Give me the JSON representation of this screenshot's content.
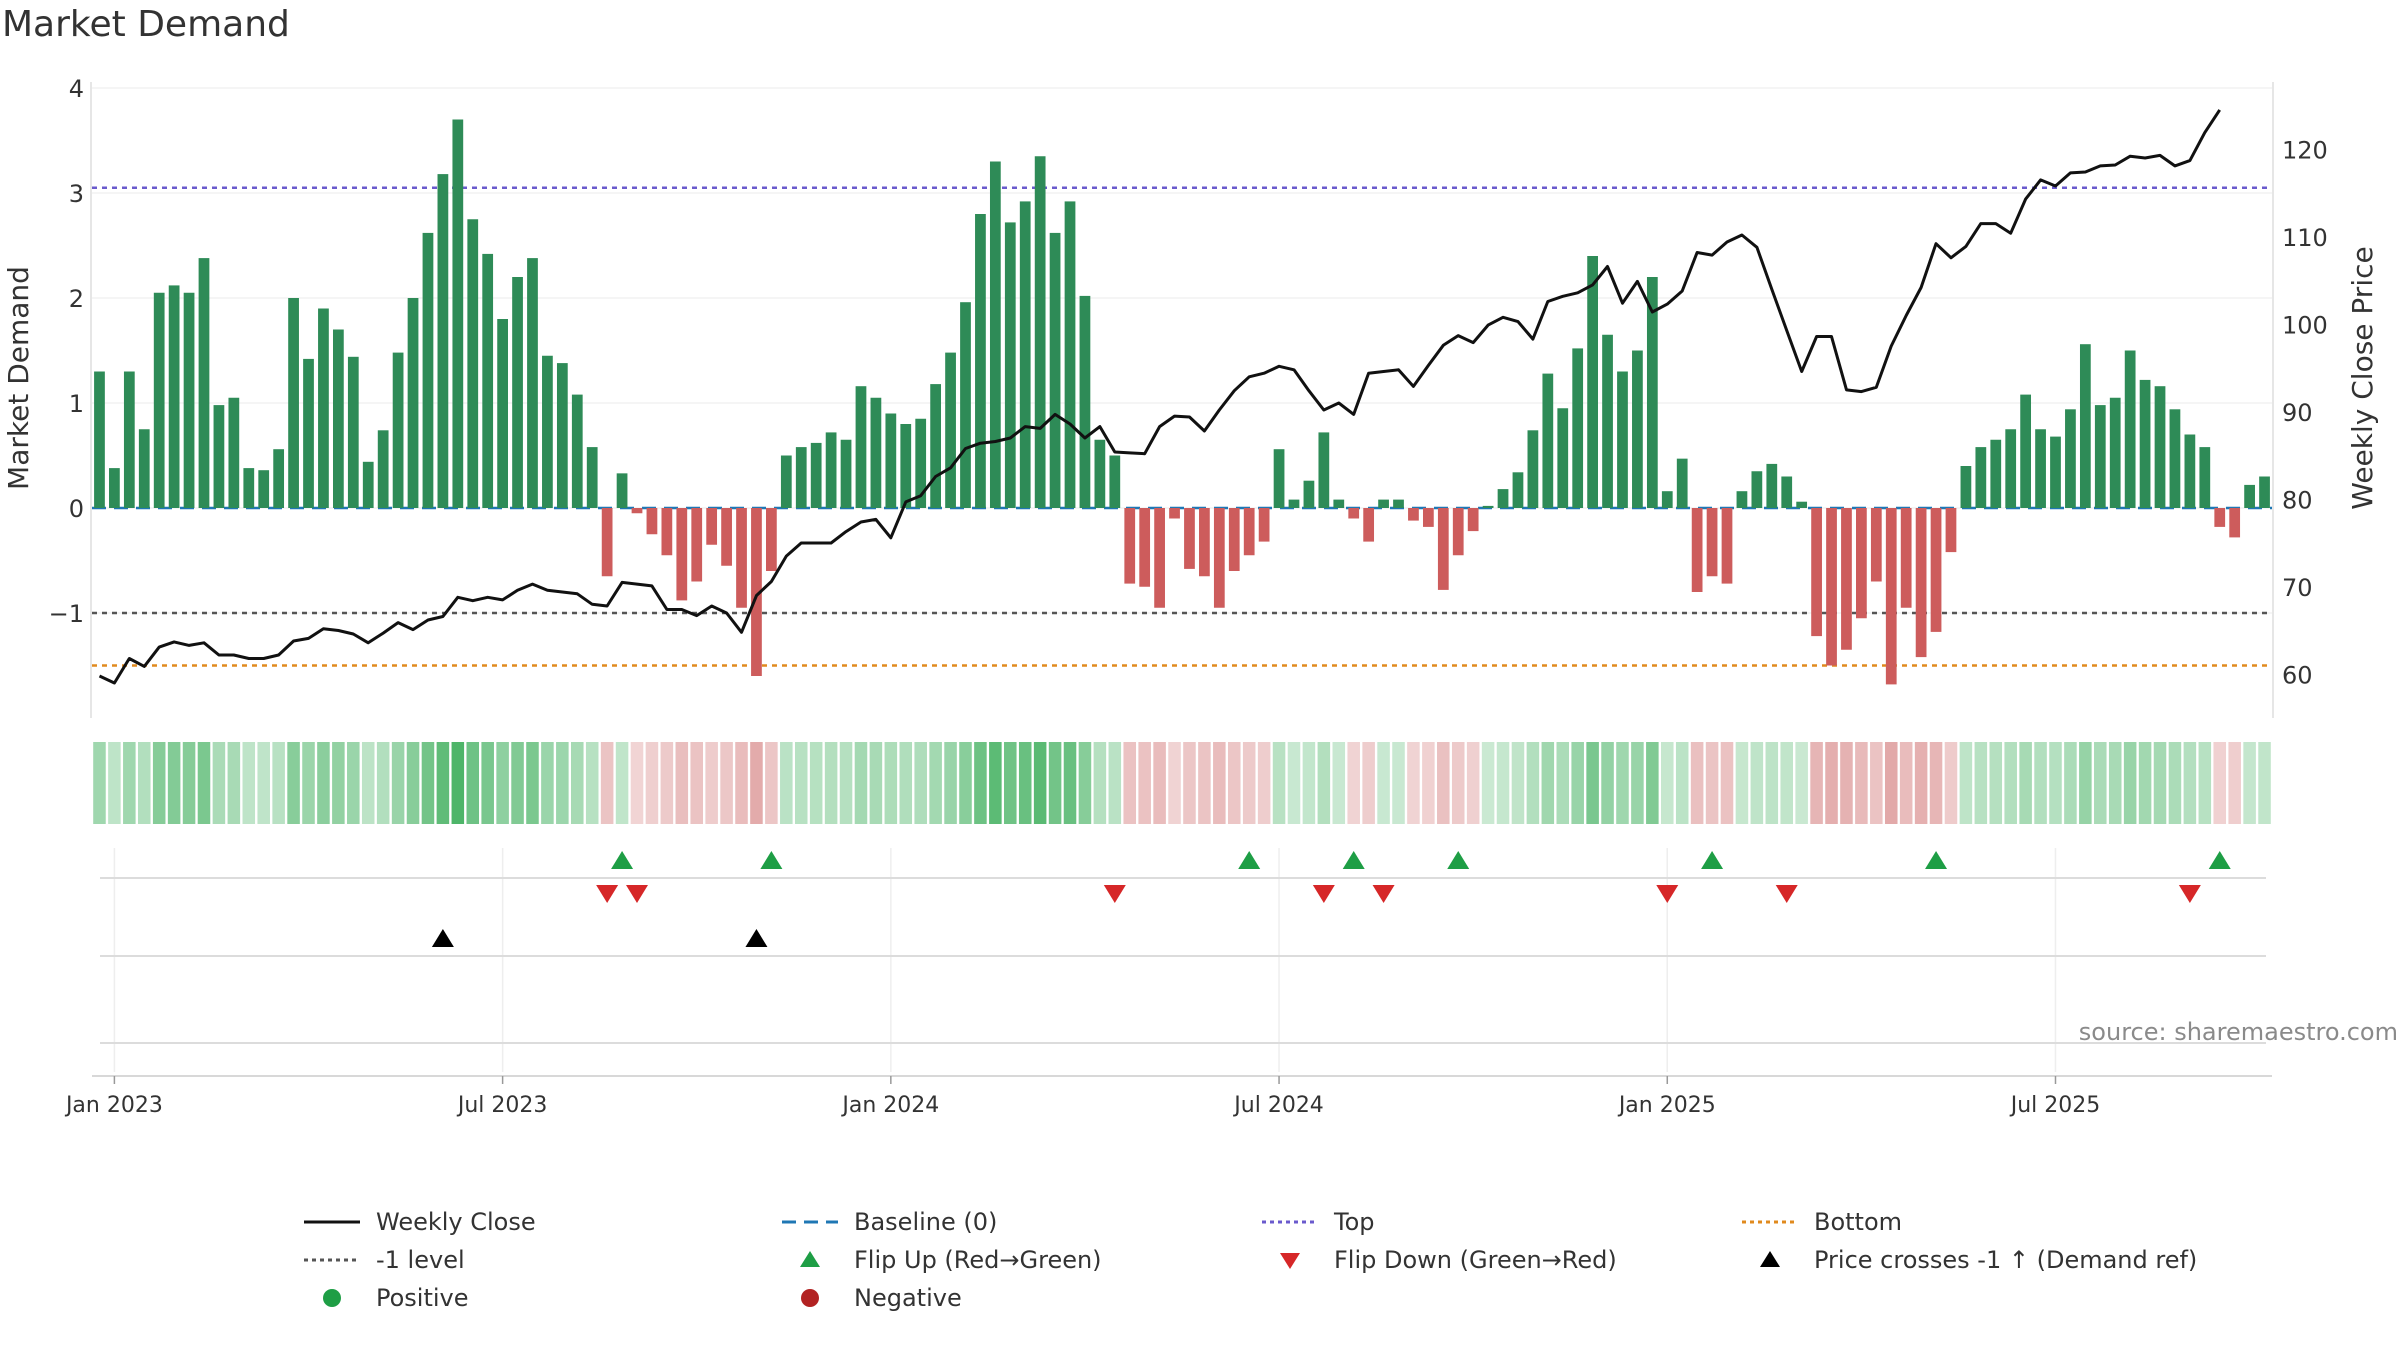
{
  "title": "Market Demand",
  "source": "source: sharemaestro.com",
  "colors": {
    "positive": "#2e8b57",
    "negative": "#cd5c5c",
    "price": "#111111",
    "baseline": "#1f77b4",
    "top": "#6a5acd",
    "bottom": "#e08a1e",
    "minus1": "#555555",
    "flip_up": "#1e9e45",
    "flip_down": "#d62728",
    "price_cross": "#000000"
  },
  "legend": [
    {
      "label": "Weekly Close",
      "marker": "solid-line",
      "color": "#111111"
    },
    {
      "label": "Baseline (0)",
      "marker": "dashed-line",
      "color": "#1f77b4"
    },
    {
      "label": "Top",
      "marker": "dotted-line",
      "color": "#6a5acd"
    },
    {
      "label": "Bottom",
      "marker": "dotted-line",
      "color": "#e08a1e"
    },
    {
      "label": "-1 level",
      "marker": "dotted-line",
      "color": "#555555"
    },
    {
      "label": "Flip Up (Red→Green)",
      "marker": "triangle-up",
      "color": "#1e9e45"
    },
    {
      "label": "Flip Down (Green→Red)",
      "marker": "triangle-down",
      "color": "#d62728"
    },
    {
      "label": "Price crosses -1 ↑ (Demand ref)",
      "marker": "triangle-up",
      "color": "#000000"
    },
    {
      "label": "Positive",
      "marker": "circle",
      "color": "#1e9e45"
    },
    {
      "label": "Negative",
      "marker": "circle",
      "color": "#b22222"
    }
  ],
  "chart_data": {
    "type": "bar",
    "title": "Market Demand",
    "ylabel_left": "Market Demand",
    "ylabel_right": "Weekly Close Price",
    "left_ylim": [
      -2.0,
      4.0
    ],
    "left_ticks": [
      -1,
      0,
      1,
      2,
      3,
      4
    ],
    "right_ylim": [
      55,
      127
    ],
    "right_ticks": [
      60,
      70,
      80,
      90,
      100,
      110,
      120
    ],
    "x_ticks": [
      "Jan 2023",
      "Jul 2023",
      "Jan 2024",
      "Jul 2024",
      "Jan 2025",
      "Jul 2025"
    ],
    "x_tick_week_index": [
      1.5,
      27.5,
      53.5,
      79.5,
      105.5,
      131.5
    ],
    "reference_lines": {
      "top": 3.05,
      "bottom": -1.5,
      "minus1": -1.0,
      "baseline": 0
    },
    "series": [
      {
        "name": "Market Demand",
        "type": "bar",
        "values": [
          1.3,
          0.38,
          1.3,
          0.75,
          2.05,
          2.12,
          2.05,
          2.38,
          0.98,
          1.05,
          0.38,
          0.36,
          0.56,
          2.0,
          1.42,
          1.9,
          1.7,
          1.44,
          0.44,
          0.74,
          1.48,
          2.0,
          2.62,
          3.18,
          3.7,
          2.75,
          2.42,
          1.8,
          2.2,
          2.38,
          1.45,
          1.38,
          1.08,
          0.58,
          -0.65,
          0.33,
          -0.05,
          -0.25,
          -0.45,
          -0.88,
          -0.7,
          -0.35,
          -0.55,
          -0.95,
          -1.6,
          -0.6,
          0.5,
          0.58,
          0.62,
          0.72,
          0.65,
          1.16,
          1.05,
          0.9,
          0.8,
          0.85,
          1.18,
          1.48,
          1.96,
          2.8,
          3.3,
          2.72,
          2.92,
          3.35,
          2.62,
          2.92,
          2.02,
          0.65,
          0.5,
          -0.72,
          -0.75,
          -0.95,
          -0.1,
          -0.58,
          -0.65,
          -0.95,
          -0.6,
          -0.45,
          -0.32,
          0.56,
          0.08,
          0.26,
          0.72,
          0.08,
          -0.1,
          -0.32,
          0.08,
          0.08,
          -0.12,
          -0.18,
          -0.78,
          -0.45,
          -0.22,
          0.02,
          0.18,
          0.34,
          0.74,
          1.28,
          0.95,
          1.52,
          2.4,
          1.65,
          1.3,
          1.5,
          2.2,
          0.16,
          0.47,
          -0.8,
          -0.65,
          -0.72,
          0.16,
          0.35,
          0.42,
          0.3,
          0.06,
          -1.22,
          -1.5,
          -1.35,
          -1.05,
          -0.7,
          -1.68,
          -0.95,
          -1.42,
          -1.18,
          -0.42,
          0.4,
          0.58,
          0.65,
          0.75,
          1.08,
          0.75,
          0.68,
          0.94,
          1.56,
          0.98,
          1.05,
          1.5,
          1.22,
          1.16,
          0.94,
          0.7,
          0.58,
          -0.18,
          -0.28,
          0.22,
          0.3
        ]
      },
      {
        "name": "Weekly Close",
        "type": "line",
        "values": [
          59.8,
          59,
          61.8,
          60.9,
          63.1,
          63.7,
          63.3,
          63.6,
          62.2,
          62.2,
          61.8,
          61.8,
          62.2,
          63.8,
          64.1,
          65.2,
          65,
          64.6,
          63.6,
          64.7,
          65.9,
          65.1,
          66.2,
          66.6,
          68.8,
          68.4,
          68.8,
          68.5,
          69.6,
          70.3,
          69.6,
          69.4,
          69.2,
          68,
          67.8,
          70.5,
          70.3,
          70.1,
          67.4,
          67.4,
          66.7,
          67.8,
          67,
          64.8,
          69,
          70.6,
          73.5,
          75,
          75,
          75,
          76.3,
          77.4,
          77.7,
          75.6,
          79.7,
          80.4,
          82.6,
          83.6,
          85.8,
          86.4,
          86.6,
          87,
          88.3,
          88.1,
          89.7,
          88.6,
          87,
          88.3,
          85.4,
          85.3,
          85.2,
          88.3,
          89.5,
          89.4,
          87.8,
          90.2,
          92.4,
          94,
          94.4,
          95.2,
          94.8,
          92.4,
          90.2,
          91,
          89.7,
          94.4,
          94.6,
          94.8,
          92.9,
          95.3,
          97.6,
          98.7,
          97.9,
          99.9,
          100.8,
          100.3,
          98.3,
          102.6,
          103.2,
          103.6,
          104.5,
          106.6,
          102.4,
          104.9,
          101.4,
          102.3,
          103.8,
          108.2,
          107.9,
          109.4,
          110.2,
          108.8,
          104,
          99.3,
          94.6,
          98.6,
          98.6,
          92.5,
          92.3,
          92.8,
          97.5,
          101,
          104.2,
          109.2,
          107.6,
          108.9,
          111.5,
          111.5,
          110.4,
          114.3,
          116.5,
          115.8,
          117.3,
          117.4,
          118.1,
          118.2,
          119.2,
          119,
          119.3,
          118.1,
          118.7,
          121.9,
          124.5
        ]
      }
    ],
    "signals": {
      "flip_up_weeks": [
        35,
        45,
        77,
        84,
        91,
        108,
        123,
        142
      ],
      "flip_down_weeks": [
        34,
        36,
        68,
        82,
        86,
        105,
        113,
        140
      ],
      "price_cross_up_weeks": [
        23,
        44
      ]
    },
    "legend_position": "bottom"
  }
}
